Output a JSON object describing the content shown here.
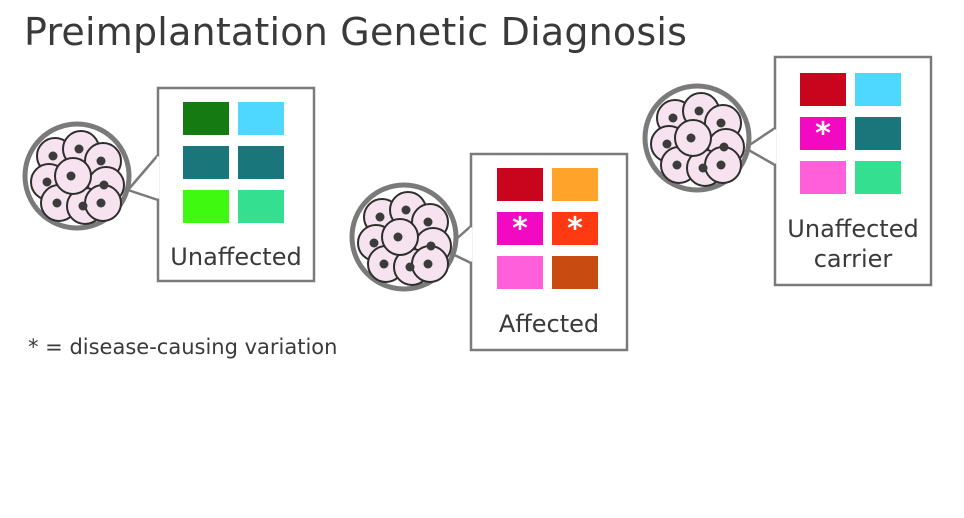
{
  "title": "Preimplantation Genetic Diagnosis",
  "legend": "* = disease-causing variation",
  "cards": [
    {
      "label_lines": [
        "Unaffected"
      ],
      "tiles": [
        {
          "color": "#167a12",
          "marked": false
        },
        {
          "color": "#4fd8ff",
          "marked": false
        },
        {
          "color": "#19767a",
          "marked": false
        },
        {
          "color": "#19767a",
          "marked": false
        },
        {
          "color": "#3ffa10",
          "marked": false
        },
        {
          "color": "#34e08f",
          "marked": false
        }
      ]
    },
    {
      "label_lines": [
        "Affected"
      ],
      "tiles": [
        {
          "color": "#c8051c",
          "marked": false
        },
        {
          "color": "#ffa32b",
          "marked": false
        },
        {
          "color": "#f209c2",
          "marked": true
        },
        {
          "color": "#ff3a12",
          "marked": true
        },
        {
          "color": "#ff5fd8",
          "marked": false
        },
        {
          "color": "#c84c12",
          "marked": false
        }
      ]
    },
    {
      "label_lines": [
        "Unaffected",
        "carrier"
      ],
      "tiles": [
        {
          "color": "#c8051c",
          "marked": false
        },
        {
          "color": "#4fd8ff",
          "marked": false
        },
        {
          "color": "#f209c2",
          "marked": true
        },
        {
          "color": "#19767a",
          "marked": false
        },
        {
          "color": "#ff5fd8",
          "marked": false
        },
        {
          "color": "#34e08f",
          "marked": false
        }
      ]
    }
  ],
  "marker_symbol": "*",
  "colors": {
    "frame": "#7a7a7a",
    "cell_fill": "#f6e3ef",
    "cell_stroke": "#2e2e2e",
    "nucleus": "#3b3b3b",
    "text": "#3a3a3a"
  }
}
